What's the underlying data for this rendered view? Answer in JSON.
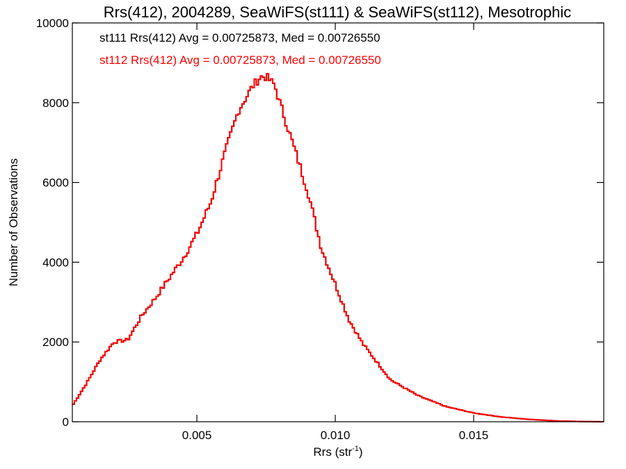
{
  "chart_data": {
    "type": "histogram",
    "title": "Rrs(412), 2004289, SeaWiFS(st111) & SeaWiFS(st112), Mesotrophic",
    "xlabel": "Rrs (str",
    "xlabel_sup": "-1",
    "xlabel_close": ")",
    "ylabel": "Number of Observations",
    "xlim": [
      0.0005,
      0.0197
    ],
    "ylim": [
      0,
      10000
    ],
    "x_ticks": [
      0.005,
      0.01,
      0.015
    ],
    "x_tick_labels": [
      "0.005",
      "0.010",
      "0.015"
    ],
    "y_ticks": [
      0,
      2000,
      4000,
      6000,
      8000,
      10000
    ],
    "y_tick_labels": [
      "0",
      "2000",
      "4000",
      "6000",
      "8000",
      "10000"
    ],
    "annotations": [
      {
        "text": "st111 Rrs(412) Avg = 0.00725873, Med = 0.00726550",
        "color": "#000000"
      },
      {
        "text": "st112 Rrs(412) Avg = 0.00725873, Med = 0.00726550",
        "color": "#ff0000"
      }
    ],
    "series": [
      {
        "name": "st111",
        "color": "#000000",
        "x": [
          0.0005,
          0.001,
          0.0015,
          0.002,
          0.0025,
          0.003,
          0.0035,
          0.004,
          0.0045,
          0.005,
          0.0055,
          0.006,
          0.0065,
          0.007,
          0.0073,
          0.0075,
          0.0078,
          0.008,
          0.0085,
          0.009,
          0.0095,
          0.01,
          0.0105,
          0.011,
          0.0115,
          0.012,
          0.013,
          0.014,
          0.015,
          0.016,
          0.017,
          0.018,
          0.019,
          0.0197
        ],
        "values": [
          400,
          950,
          1550,
          2000,
          2050,
          2650,
          3100,
          3600,
          4100,
          4700,
          5500,
          6700,
          7800,
          8400,
          8650,
          8650,
          8450,
          8000,
          6900,
          5800,
          4350,
          3450,
          2550,
          1950,
          1500,
          1050,
          650,
          380,
          220,
          120,
          60,
          20,
          5,
          0
        ]
      },
      {
        "name": "st112",
        "color": "#ff0000",
        "x": [
          0.0005,
          0.001,
          0.0015,
          0.002,
          0.0025,
          0.003,
          0.0035,
          0.004,
          0.0045,
          0.005,
          0.0055,
          0.006,
          0.0065,
          0.007,
          0.0073,
          0.0075,
          0.0078,
          0.008,
          0.0085,
          0.009,
          0.0095,
          0.01,
          0.0105,
          0.011,
          0.0115,
          0.012,
          0.013,
          0.014,
          0.015,
          0.016,
          0.017,
          0.018,
          0.019,
          0.0197
        ],
        "values": [
          400,
          950,
          1550,
          2000,
          2050,
          2650,
          3100,
          3600,
          4100,
          4700,
          5500,
          6700,
          7800,
          8400,
          8650,
          8650,
          8450,
          8000,
          6900,
          5800,
          4350,
          3450,
          2550,
          1950,
          1500,
          1050,
          650,
          380,
          220,
          120,
          60,
          20,
          5,
          0
        ]
      }
    ]
  }
}
